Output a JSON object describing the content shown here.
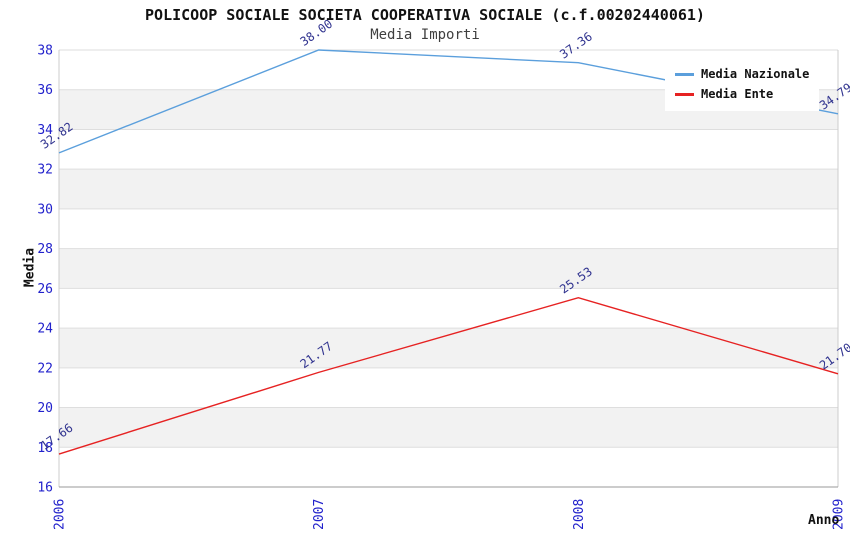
{
  "title": "POLICOOP SOCIALE SOCIETA COOPERATIVA SOCIALE (c.f.00202440061)",
  "subtitle": "Media Importi",
  "chart_data": {
    "type": "line",
    "categories": [
      "2006",
      "2007",
      "2008",
      "2009"
    ],
    "series": [
      {
        "name": "Media Nazionale",
        "color": "#5b9fdc",
        "values": [
          32.82,
          38.0,
          37.36,
          34.79
        ]
      },
      {
        "name": "Media Ente",
        "color": "#e62222",
        "values": [
          17.66,
          21.77,
          25.53,
          21.7
        ]
      }
    ],
    "xlabel": "Anno",
    "ylabel": "Media",
    "ylim": [
      16,
      38
    ],
    "ytick_step": 2,
    "grid": true,
    "legend_position": "top-right",
    "value_labels": true,
    "colors": {
      "band_fill": "#f2f2f2",
      "gridline": "#dedede",
      "axis_line": "#999999",
      "plot_border": "#cccccc",
      "tick_label": "#2222cc",
      "value_label": "#30338f",
      "title": "#111111",
      "subtitle": "#3f3f3f"
    }
  }
}
